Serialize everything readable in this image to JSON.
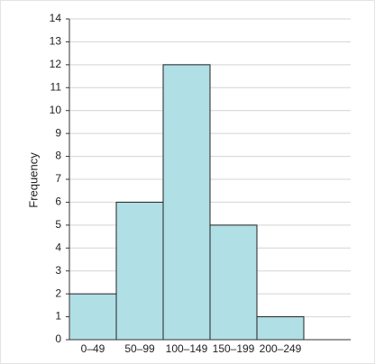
{
  "chart_data": {
    "type": "bar",
    "y_label": "Frequency",
    "categories": [
      "0–49",
      "50–99",
      "100–149",
      "150–199",
      "200–249"
    ],
    "values": [
      2,
      6,
      12,
      5,
      1
    ],
    "color": "#b0dfe6",
    "ylim": [
      0,
      14
    ],
    "yticks": [
      0,
      1,
      2,
      3,
      4,
      5,
      6,
      7,
      8,
      9,
      10,
      11,
      12,
      13,
      14
    ],
    "grid": true
  }
}
